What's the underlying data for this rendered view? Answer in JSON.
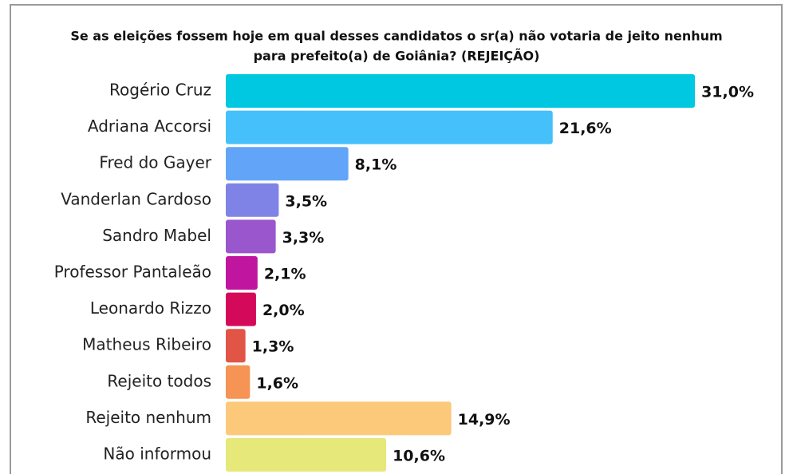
{
  "chart_data": {
    "type": "bar",
    "orientation": "horizontal",
    "title": [
      "Se as eleições fossem hoje em qual desses candidatos o sr(a) não votaria de jeito nenhum",
      "para prefeito(a) de Goiânia? (REJEIÇÃO)"
    ],
    "categories": [
      "Rogério Cruz",
      "Adriana Accorsi",
      "Fred do Gayer",
      "Vanderlan Cardoso",
      "Sandro Mabel",
      "Professor Pantaleão",
      "Leonardo Rizzo",
      "Matheus Ribeiro",
      "Rejeito todos",
      "Rejeito nenhum",
      "Não informou"
    ],
    "values": [
      31.0,
      21.6,
      8.1,
      3.5,
      3.3,
      2.1,
      2.0,
      1.3,
      1.6,
      14.9,
      10.6
    ],
    "value_labels": [
      "31,0%",
      "21,6%",
      "8,1%",
      "3,5%",
      "3,3%",
      "2,1%",
      "2,0%",
      "1,3%",
      "1,6%",
      "14,9%",
      "10,6%"
    ],
    "colors": [
      "#00c8e0",
      "#45c0fb",
      "#62a5f8",
      "#8083e6",
      "#9a56cc",
      "#c0169f",
      "#d5095a",
      "#e05545",
      "#f59454",
      "#fcc97a",
      "#e6e87a"
    ]
  }
}
